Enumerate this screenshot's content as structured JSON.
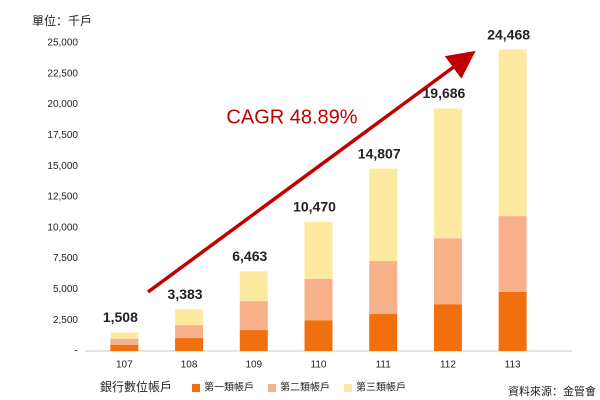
{
  "chart_data": {
    "type": "stacked-bar",
    "unit_label": "單位：千戶",
    "annotation": "CAGR 48.89%",
    "x_label": "銀行數位帳戶",
    "source": "資料來源：金管會",
    "categories": [
      "107",
      "108",
      "109",
      "110",
      "111",
      "112",
      "113"
    ],
    "series": [
      {
        "name": "第一類帳戶",
        "color": "#f07010",
        "values": [
          500,
          1050,
          1700,
          2500,
          3000,
          3800,
          4800
        ]
      },
      {
        "name": "第二類帳戶",
        "color": "#f8b08a",
        "values": [
          500,
          1050,
          2350,
          3350,
          4300,
          5350,
          6150
        ]
      },
      {
        "name": "第三類帳戶",
        "color": "#fde9a0",
        "values": [
          508,
          1283,
          2413,
          4620,
          7507,
          10536,
          13518
        ]
      }
    ],
    "totals": [
      1508,
      3383,
      6463,
      10470,
      14807,
      19686,
      24468
    ],
    "value_labels": [
      "1,508",
      "3,383",
      "6,463",
      "10,470",
      "14,807",
      "19,686",
      "24,468"
    ],
    "ylim": [
      0,
      25000
    ],
    "yticks": [
      {
        "value": 0,
        "label": "-"
      },
      {
        "value": 2500,
        "label": "2,500"
      },
      {
        "value": 5000,
        "label": "5,000"
      },
      {
        "value": 7500,
        "label": "7,500"
      },
      {
        "value": 10000,
        "label": "10,000"
      },
      {
        "value": 12500,
        "label": "12,500"
      },
      {
        "value": 15000,
        "label": "15,000"
      },
      {
        "value": 17500,
        "label": "17,500"
      },
      {
        "value": 20000,
        "label": "20,000"
      },
      {
        "value": 22500,
        "label": "22,500"
      },
      {
        "value": 25000,
        "label": "25,000"
      }
    ]
  }
}
